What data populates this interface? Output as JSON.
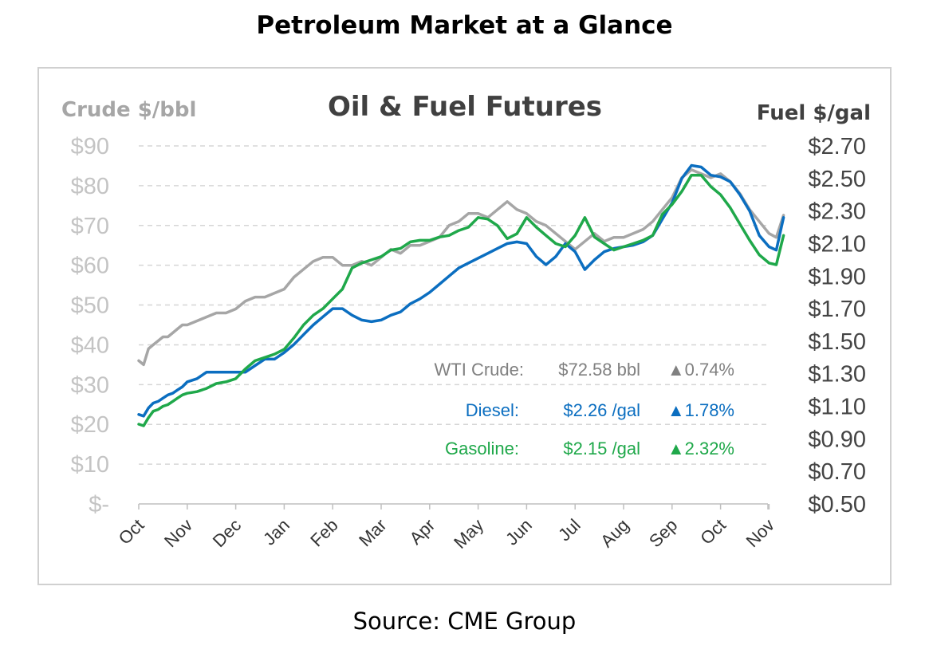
{
  "heading": "Petroleum Market at a Glance",
  "source": "Source: CME Group",
  "colors": {
    "crude": "#a6a6a6",
    "diesel": "#0b6ec0",
    "gasoline": "#1fa84a",
    "grid": "#d6d6d6"
  },
  "chart_data": {
    "type": "line",
    "title": "Oil & Fuel Futures",
    "left_axis": {
      "label": "Crude $/bbl",
      "ylim": [
        0,
        90
      ],
      "ticks": [
        "$-",
        "$10",
        "$20",
        "$30",
        "$40",
        "$50",
        "$60",
        "$70",
        "$80",
        "$90"
      ]
    },
    "right_axis": {
      "label": "Fuel $/gal",
      "ylim": [
        0.5,
        2.7
      ],
      "ticks": [
        "$0.50",
        "$0.70",
        "$0.90",
        "$1.10",
        "$1.30",
        "$1.50",
        "$1.70",
        "$1.90",
        "$2.10",
        "$2.30",
        "$2.50",
        "$2.70"
      ]
    },
    "categories": [
      "Oct",
      "Nov",
      "Dec",
      "Jan",
      "Feb",
      "Mar",
      "Apr",
      "May",
      "Jun",
      "Jul",
      "Aug",
      "Sep",
      "Oct",
      "Nov"
    ],
    "grid": "horizontal dashed",
    "series": [
      {
        "name": "WTI Crude",
        "axis": "left",
        "color": "#a6a6a6",
        "x": [
          0,
          0.1,
          0.2,
          0.3,
          0.4,
          0.5,
          0.6,
          0.7,
          0.8,
          0.9,
          1,
          1.2,
          1.4,
          1.6,
          1.8,
          2,
          2.2,
          2.4,
          2.6,
          2.8,
          3,
          3.2,
          3.4,
          3.6,
          3.8,
          4,
          4.2,
          4.4,
          4.6,
          4.8,
          5,
          5.2,
          5.4,
          5.6,
          5.8,
          6,
          6.2,
          6.4,
          6.6,
          6.8,
          7,
          7.2,
          7.4,
          7.6,
          7.8,
          8,
          8.2,
          8.4,
          8.6,
          8.8,
          9,
          9.2,
          9.4,
          9.6,
          9.8,
          10,
          10.2,
          10.4,
          10.6,
          10.8,
          11,
          11.2,
          11.4,
          11.6,
          11.8,
          12,
          12.2,
          12.4,
          12.6,
          12.8,
          13,
          13.15,
          13.3
        ],
        "values": [
          36,
          35,
          39,
          40,
          41,
          42,
          42,
          43,
          44,
          45,
          45,
          46,
          47,
          48,
          48,
          49,
          51,
          52,
          52,
          53,
          54,
          57,
          59,
          61,
          62,
          62,
          60,
          60,
          61,
          60,
          62,
          64,
          63,
          65,
          65,
          66,
          67,
          70,
          71,
          73,
          73,
          72,
          74,
          76,
          74,
          73,
          71,
          70,
          68,
          66,
          64,
          66,
          68,
          66,
          67,
          67,
          68,
          69,
          71,
          74,
          77,
          82,
          84,
          83,
          82,
          83,
          81,
          78,
          74,
          71,
          68,
          67,
          72.58
        ]
      },
      {
        "name": "Diesel",
        "axis": "right",
        "color": "#0b6ec0",
        "x": [
          0,
          0.1,
          0.2,
          0.3,
          0.4,
          0.5,
          0.6,
          0.7,
          0.8,
          0.9,
          1,
          1.2,
          1.4,
          1.6,
          1.8,
          2,
          2.2,
          2.4,
          2.6,
          2.8,
          3,
          3.2,
          3.4,
          3.6,
          3.8,
          4,
          4.2,
          4.4,
          4.6,
          4.8,
          5,
          5.2,
          5.4,
          5.6,
          5.8,
          6,
          6.2,
          6.4,
          6.6,
          6.8,
          7,
          7.2,
          7.4,
          7.6,
          7.8,
          8,
          8.2,
          8.4,
          8.6,
          8.8,
          9,
          9.2,
          9.4,
          9.6,
          9.8,
          10,
          10.2,
          10.4,
          10.6,
          10.8,
          11,
          11.2,
          11.4,
          11.6,
          11.8,
          12,
          12.2,
          12.4,
          12.6,
          12.8,
          13,
          13.15,
          13.3
        ],
        "values": [
          1.05,
          1.04,
          1.09,
          1.12,
          1.13,
          1.15,
          1.17,
          1.18,
          1.2,
          1.22,
          1.25,
          1.27,
          1.31,
          1.31,
          1.31,
          1.31,
          1.31,
          1.35,
          1.39,
          1.39,
          1.43,
          1.48,
          1.54,
          1.6,
          1.65,
          1.7,
          1.7,
          1.66,
          1.63,
          1.62,
          1.63,
          1.66,
          1.68,
          1.73,
          1.76,
          1.8,
          1.85,
          1.9,
          1.95,
          1.98,
          2.01,
          2.04,
          2.07,
          2.1,
          2.11,
          2.1,
          2.02,
          1.97,
          2.02,
          2.1,
          2.05,
          1.94,
          2,
          2.05,
          2.07,
          2.08,
          2.09,
          2.11,
          2.15,
          2.25,
          2.35,
          2.5,
          2.58,
          2.57,
          2.52,
          2.51,
          2.48,
          2.4,
          2.3,
          2.15,
          2.08,
          2.06,
          2.26
        ]
      },
      {
        "name": "Gasoline",
        "axis": "right",
        "color": "#1fa84a",
        "x": [
          0,
          0.1,
          0.2,
          0.3,
          0.4,
          0.5,
          0.6,
          0.7,
          0.8,
          0.9,
          1,
          1.2,
          1.4,
          1.6,
          1.8,
          2,
          2.2,
          2.4,
          2.6,
          2.8,
          3,
          3.2,
          3.4,
          3.6,
          3.8,
          4,
          4.2,
          4.4,
          4.6,
          4.8,
          5,
          5.2,
          5.4,
          5.6,
          5.8,
          6,
          6.2,
          6.4,
          6.6,
          6.8,
          7,
          7.2,
          7.4,
          7.6,
          7.8,
          8,
          8.2,
          8.4,
          8.6,
          8.8,
          9,
          9.2,
          9.4,
          9.6,
          9.8,
          10,
          10.2,
          10.4,
          10.6,
          10.8,
          11,
          11.2,
          11.4,
          11.6,
          11.8,
          12,
          12.2,
          12.4,
          12.6,
          12.8,
          13,
          13.15,
          13.3
        ],
        "values": [
          0.99,
          0.98,
          1.03,
          1.07,
          1.08,
          1.1,
          1.11,
          1.13,
          1.15,
          1.17,
          1.18,
          1.19,
          1.21,
          1.24,
          1.25,
          1.27,
          1.33,
          1.38,
          1.4,
          1.42,
          1.45,
          1.52,
          1.6,
          1.66,
          1.7,
          1.76,
          1.82,
          1.95,
          1.98,
          2.0,
          2.02,
          2.06,
          2.07,
          2.11,
          2.12,
          2.12,
          2.14,
          2.15,
          2.18,
          2.2,
          2.26,
          2.25,
          2.21,
          2.13,
          2.16,
          2.26,
          2.2,
          2.15,
          2.1,
          2.08,
          2.15,
          2.26,
          2.14,
          2.1,
          2.06,
          2.08,
          2.1,
          2.12,
          2.15,
          2.28,
          2.34,
          2.42,
          2.52,
          2.52,
          2.45,
          2.4,
          2.32,
          2.22,
          2.12,
          2.03,
          1.98,
          1.97,
          2.15
        ]
      }
    ],
    "annotations": [
      {
        "series": "WTI Crude",
        "label": "WTI Crude:",
        "price": "$72.58 bbl",
        "change": "▲0.74%",
        "color": "#808080"
      },
      {
        "series": "Diesel",
        "label": "Diesel:",
        "price": "$2.26 /gal",
        "change": "▲1.78%",
        "color": "#0b6ec0"
      },
      {
        "series": "Gasoline",
        "label": "Gasoline:",
        "price": "$2.15 /gal",
        "change": "▲2.32%",
        "color": "#1fa84a"
      }
    ]
  }
}
